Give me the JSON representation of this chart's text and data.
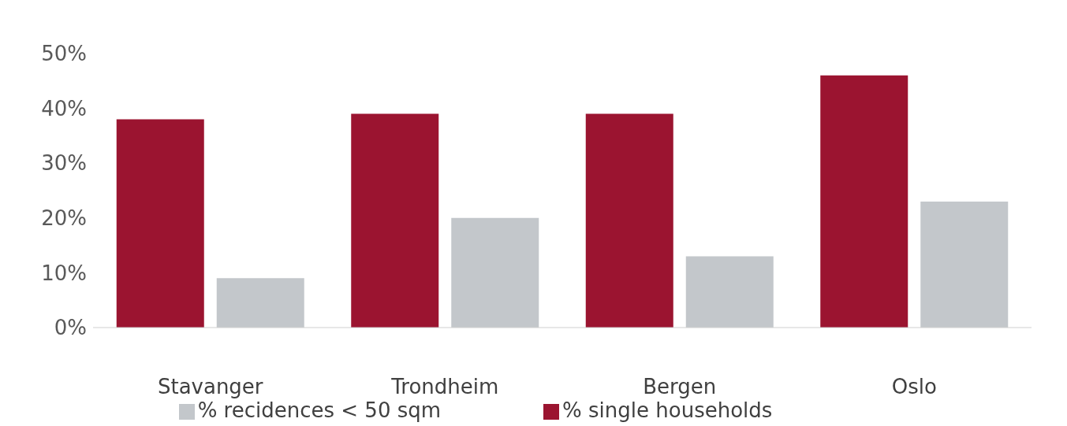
{
  "chart_data": {
    "type": "bar",
    "categories": [
      "Stavanger",
      "Trondheim",
      "Bergen",
      "Oslo"
    ],
    "series": [
      {
        "name": "% single households",
        "color": "#9b1430",
        "values": [
          38,
          39,
          39,
          46
        ]
      },
      {
        "name": "% recidences < 50 sqm",
        "color": "#c3c7cb",
        "values": [
          9,
          20,
          13,
          23
        ]
      }
    ],
    "ylim": [
      0,
      50
    ],
    "yticks": [
      {
        "value": 0,
        "label": "0%"
      },
      {
        "value": 10,
        "label": "10%"
      },
      {
        "value": 20,
        "label": "20%"
      },
      {
        "value": 30,
        "label": "30%"
      },
      {
        "value": 40,
        "label": "40%"
      },
      {
        "value": 50,
        "label": "50%"
      }
    ],
    "grid": false,
    "legend": "bottom"
  }
}
